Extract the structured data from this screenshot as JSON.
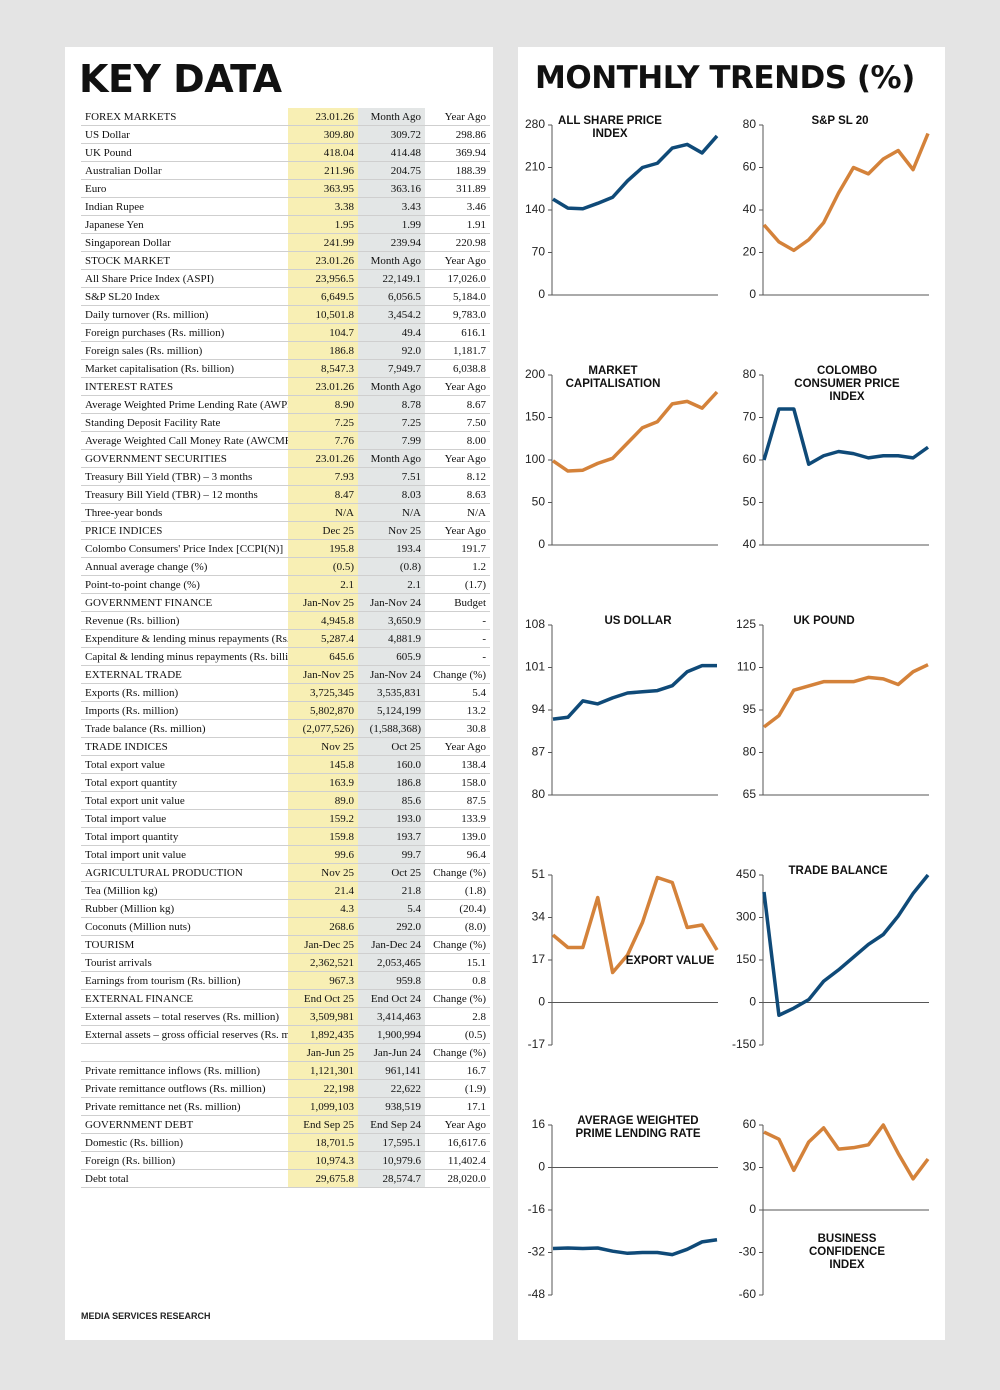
{
  "key_data": {
    "title": "KEY DATA",
    "footer": "MEDIA SERVICES RESEARCH",
    "sections": [
      {
        "title": "FOREX MARKETS",
        "columns": [
          "23.01.26",
          "Month Ago",
          "Year Ago"
        ],
        "rows": [
          [
            "US Dollar",
            "309.80",
            "309.72",
            "298.86"
          ],
          [
            "UK Pound",
            "418.04",
            "414.48",
            "369.94"
          ],
          [
            "Australian Dollar",
            "211.96",
            "204.75",
            "188.39"
          ],
          [
            "Euro",
            "363.95",
            "363.16",
            "311.89"
          ],
          [
            "Indian Rupee",
            "3.38",
            "3.43",
            "3.46"
          ],
          [
            "Japanese Yen",
            "1.95",
            "1.99",
            "1.91"
          ],
          [
            "Singaporean Dollar",
            "241.99",
            "239.94",
            "220.98"
          ]
        ]
      },
      {
        "title": "STOCK MARKET",
        "columns": [
          "23.01.26",
          "Month Ago",
          "Year Ago"
        ],
        "rows": [
          [
            "All Share Price Index (ASPI)",
            "23,956.5",
            "22,149.1",
            "17,026.0"
          ],
          [
            "S&P SL20 Index",
            "6,649.5",
            "6,056.5",
            "5,184.0"
          ],
          [
            "Daily turnover (Rs. million)",
            "10,501.8",
            "3,454.2",
            "9,783.0"
          ],
          [
            "Foreign purchases (Rs. million)",
            "104.7",
            "49.4",
            "616.1"
          ],
          [
            "Foreign sales (Rs. million)",
            "186.8",
            "92.0",
            "1,181.7"
          ],
          [
            "Market capitalisation (Rs. billion)",
            "8,547.3",
            "7,949.7",
            "6,038.8"
          ]
        ]
      },
      {
        "title": "INTEREST RATES",
        "columns": [
          "23.01.26",
          "Month Ago",
          "Year Ago"
        ],
        "rows": [
          [
            "Average Weighted Prime Lending Rate (AWPR)",
            "8.90",
            "8.78",
            "8.67"
          ],
          [
            "Standing Deposit Facility Rate",
            "7.25",
            "7.25",
            "7.50"
          ],
          [
            "Average Weighted Call Money Rate (AWCMR)",
            "7.76",
            "7.99",
            "8.00"
          ]
        ]
      },
      {
        "title": "GOVERNMENT SECURITIES",
        "columns": [
          "23.01.26",
          "Month Ago",
          "Year Ago"
        ],
        "rows": [
          [
            "Treasury Bill Yield (TBR) – 3 months",
            "7.93",
            "7.51",
            "8.12"
          ],
          [
            "Treasury Bill Yield (TBR) – 12 months",
            "8.47",
            "8.03",
            "8.63"
          ],
          [
            "Three-year bonds",
            "N/A",
            "N/A",
            "N/A"
          ]
        ]
      },
      {
        "title": "PRICE INDICES",
        "columns": [
          "Dec 25",
          "Nov 25",
          "Year Ago"
        ],
        "rows": [
          [
            "Colombo Consumers' Price Index [CCPI(N)]",
            "195.8",
            "193.4",
            "191.7"
          ],
          [
            "Annual average change (%)",
            "(0.5)",
            "(0.8)",
            "1.2"
          ],
          [
            "Point-to-point change (%)",
            "2.1",
            "2.1",
            "(1.7)"
          ]
        ]
      },
      {
        "title": "GOVERNMENT FINANCE",
        "columns": [
          "Jan-Nov 25",
          "Jan-Nov 24",
          "Budget"
        ],
        "rows": [
          [
            "Revenue (Rs. billion)",
            "4,945.8",
            "3,650.9",
            "-"
          ],
          [
            "Expenditure & lending minus repayments (Rs. billion)",
            "5,287.4",
            "4,881.9",
            "-"
          ],
          [
            "Capital & lending minus repayments (Rs. billion)",
            "645.6",
            "605.9",
            "-"
          ]
        ]
      },
      {
        "title": "EXTERNAL TRADE",
        "columns": [
          "Jan-Nov 25",
          "Jan-Nov 24",
          "Change (%)"
        ],
        "rows": [
          [
            "Exports (Rs. million)",
            "3,725,345",
            "3,535,831",
            "5.4"
          ],
          [
            "Imports (Rs. million)",
            "5,802,870",
            "5,124,199",
            "13.2"
          ],
          [
            "Trade balance (Rs. million)",
            "(2,077,526)",
            "(1,588,368)",
            "30.8"
          ]
        ]
      },
      {
        "title": "TRADE INDICES",
        "columns": [
          "Nov 25",
          "Oct 25",
          "Year Ago"
        ],
        "rows": [
          [
            "Total export value",
            "145.8",
            "160.0",
            "138.4"
          ],
          [
            "Total export quantity",
            "163.9",
            "186.8",
            "158.0"
          ],
          [
            "Total export unit value",
            "89.0",
            "85.6",
            "87.5"
          ],
          [
            "Total import value",
            "159.2",
            "193.0",
            "133.9"
          ],
          [
            "Total import quantity",
            "159.8",
            "193.7",
            "139.0"
          ],
          [
            "Total import unit value",
            "99.6",
            "99.7",
            "96.4"
          ]
        ]
      },
      {
        "title": "AGRICULTURAL PRODUCTION",
        "columns": [
          "Nov 25",
          "Oct 25",
          "Change (%)"
        ],
        "rows": [
          [
            "Tea (Million kg)",
            "21.4",
            "21.8",
            "(1.8)"
          ],
          [
            "Rubber (Million kg)",
            "4.3",
            "5.4",
            "(20.4)"
          ],
          [
            "Coconuts (Million nuts)",
            "268.6",
            "292.0",
            "(8.0)"
          ]
        ]
      },
      {
        "title": "TOURISM",
        "columns": [
          "Jan-Dec 25",
          "Jan-Dec 24",
          "Change (%)"
        ],
        "rows": [
          [
            "Tourist arrivals",
            "2,362,521",
            "2,053,465",
            "15.1"
          ],
          [
            "Earnings from tourism (Rs. billion)",
            "967.3",
            "959.8",
            "0.8"
          ]
        ]
      },
      {
        "title": "EXTERNAL FINANCE",
        "columns": [
          "End Oct 25",
          "End Oct 24",
          "Change (%)"
        ],
        "rows": [
          [
            "External assets – total reserves (Rs. million)",
            "3,509,981",
            "3,414,463",
            "2.8"
          ],
          [
            "External assets – gross official reserves (Rs. million)",
            "1,892,435",
            "1,900,994",
            "(0.5)"
          ]
        ]
      },
      {
        "columns": [
          "Jan-Jun 25",
          "Jan-Jun 24",
          "Change (%)"
        ],
        "rows": [
          [
            "Private remittance inflows (Rs. million)",
            "1,121,301",
            "961,141",
            "16.7"
          ],
          [
            "Private remittance outflows (Rs. million)",
            "22,198",
            "22,622",
            "(1.9)"
          ],
          [
            "Private remittance net (Rs. million)",
            "1,099,103",
            "938,519",
            "17.1"
          ]
        ]
      },
      {
        "title": "GOVERNMENT DEBT",
        "columns": [
          "End Sep 25",
          "End Sep 24",
          "Year Ago"
        ],
        "rows": [
          [
            "Domestic (Rs. billion)",
            "18,701.5",
            "17,595.1",
            "16,617.6"
          ],
          [
            "Foreign (Rs. billion)",
            "10,974.3",
            "10,979.6",
            "11,402.4"
          ],
          [
            "Debt total",
            "29,675.8",
            "28,574.7",
            "28,020.0"
          ]
        ]
      }
    ]
  },
  "trends_title": "MONTHLY TRENDS (%)",
  "chart_data": [
    {
      "type": "line",
      "title": "ALL SHARE PRICE INDEX",
      "color": "#0f4a78",
      "ylim": [
        0,
        280
      ],
      "yticks": [
        0,
        70,
        140,
        210,
        280
      ],
      "values": [
        158,
        143,
        142,
        151,
        161,
        188,
        210,
        217,
        242,
        248,
        234,
        262
      ]
    },
    {
      "type": "line",
      "title": "S&P SL 20",
      "color": "#d4823a",
      "ylim": [
        0,
        80
      ],
      "yticks": [
        0,
        20,
        40,
        60,
        80
      ],
      "values": [
        33,
        25,
        21,
        26,
        34,
        48,
        60,
        57,
        64,
        68,
        59,
        76
      ]
    },
    {
      "type": "line",
      "title": "MARKET CAPITALISATION",
      "color": "#d4823a",
      "ylim": [
        0,
        200
      ],
      "yticks": [
        0,
        50,
        100,
        150,
        200
      ],
      "values": [
        99,
        87,
        88,
        96,
        102,
        120,
        138,
        145,
        166,
        169,
        161,
        180
      ]
    },
    {
      "type": "line",
      "title": "COLOMBO CONSUMER PRICE INDEX",
      "color": "#0f4a78",
      "ylim": [
        40,
        80
      ],
      "yticks": [
        40,
        50,
        60,
        70,
        80
      ],
      "values": [
        60,
        72,
        72,
        59,
        61,
        62,
        61.5,
        60.5,
        61,
        61,
        60.5,
        63
      ]
    },
    {
      "type": "line",
      "title": "US DOLLAR",
      "color": "#0f4a78",
      "ylim": [
        80,
        108
      ],
      "yticks": [
        80,
        87,
        94,
        101,
        108
      ],
      "values": [
        92.5,
        92.8,
        95.5,
        95,
        96,
        96.8,
        97,
        97.2,
        98,
        100.3,
        101.3,
        101.3
      ]
    },
    {
      "type": "line",
      "title": "UK POUND",
      "color": "#d4823a",
      "ylim": [
        65,
        125
      ],
      "yticks": [
        65,
        80,
        95,
        110,
        125
      ],
      "values": [
        89,
        93,
        102,
        103.5,
        105,
        105,
        105,
        106.5,
        106,
        104,
        108.5,
        111
      ]
    },
    {
      "type": "line",
      "title": "EXPORT VALUE",
      "color": "#d4823a",
      "ylim": [
        -17,
        51
      ],
      "yticks": [
        -17,
        0,
        17,
        34,
        51
      ],
      "values": [
        27,
        22,
        22,
        42,
        12,
        19,
        32,
        50,
        48,
        30,
        31,
        21
      ]
    },
    {
      "type": "line",
      "title": "TRADE BALANCE",
      "color": "#0f4a78",
      "ylim": [
        -150,
        450
      ],
      "yticks": [
        -150,
        0,
        150,
        300,
        450
      ],
      "values": [
        390,
        -45,
        -20,
        10,
        75,
        115,
        160,
        205,
        240,
        305,
        385,
        450
      ]
    },
    {
      "type": "line",
      "title": "AVERAGE WEIGHTED PRIME LENDING RATE",
      "color": "#0f4a78",
      "ylim": [
        -48,
        16
      ],
      "yticks": [
        -48,
        -32,
        -16,
        0,
        16
      ],
      "values": [
        -30.5,
        -30.3,
        -30.5,
        -30.3,
        -31.5,
        -32.3,
        -32,
        -32,
        -32.8,
        -30.8,
        -28,
        -27.2
      ]
    },
    {
      "type": "line",
      "title": "BUSINESS CONFIDENCE INDEX",
      "color": "#d4823a",
      "ylim": [
        -60,
        60
      ],
      "yticks": [
        -60,
        -30,
        0,
        30,
        60
      ],
      "values": [
        55,
        50,
        28,
        48,
        58,
        43,
        44,
        46,
        60,
        40,
        22,
        36
      ]
    }
  ]
}
